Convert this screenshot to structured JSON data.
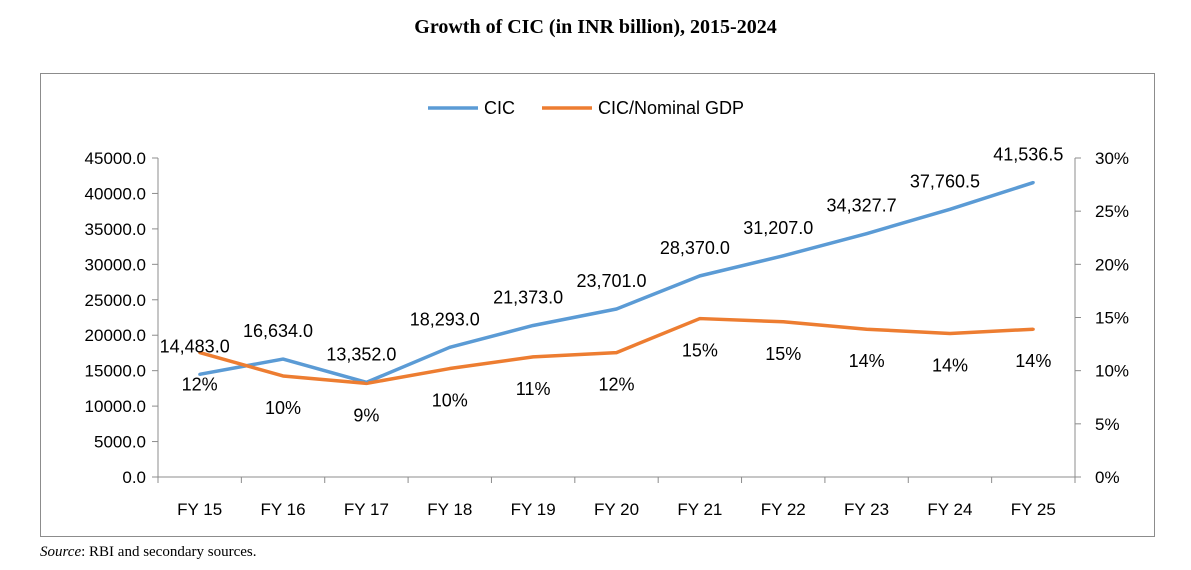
{
  "title": "Growth of CIC (in INR billion), 2015-2024",
  "source": {
    "label": "Source",
    "text": ": RBI and secondary sources."
  },
  "colors": {
    "cic": "#5b9bd5",
    "ratio": "#ed7d31",
    "axis": "#8c8c8c",
    "text": "#000000"
  },
  "chart_data": {
    "type": "line",
    "title": "Growth of CIC (in INR billion), 2015-2024",
    "categories": [
      "FY 15",
      "FY 16",
      "FY 17",
      "FY 18",
      "FY 19",
      "FY 20",
      "FY 21",
      "FY 22",
      "FY 23",
      "FY 24",
      "FY 25"
    ],
    "legend_position": "top",
    "grid": false,
    "y_left": {
      "range": [
        0,
        45000
      ],
      "ticks": [
        "0.0",
        "5000.0",
        "10000.0",
        "15000.0",
        "20000.0",
        "25000.0",
        "30000.0",
        "35000.0",
        "40000.0",
        "45000.0"
      ]
    },
    "y_right": {
      "range": [
        0,
        30
      ],
      "unit": "%",
      "ticks": [
        "0%",
        "5%",
        "10%",
        "15%",
        "20%",
        "25%",
        "30%"
      ]
    },
    "series": [
      {
        "name": "CIC",
        "axis": "left",
        "values": [
          14483.0,
          16634.0,
          13352.0,
          18293.0,
          21373.0,
          23701.0,
          28370.0,
          31207.0,
          34327.7,
          37760.5,
          41536.5
        ],
        "labels": [
          "14,483.0",
          "16,634.0",
          "13,352.0",
          "18,293.0",
          "21,373.0",
          "23,701.0",
          "28,370.0",
          "31,207.0",
          "34,327.7",
          "37,760.5",
          "41,536.5"
        ]
      },
      {
        "name": "CIC/Nominal GDP",
        "axis": "right",
        "values": [
          11.7,
          9.5,
          8.8,
          10.2,
          11.3,
          11.7,
          14.9,
          14.6,
          13.9,
          13.5,
          13.9
        ],
        "labels": [
          "12%",
          "10%",
          "9%",
          "10%",
          "11%",
          "12%",
          "15%",
          "15%",
          "14%",
          "14%",
          "14%"
        ]
      }
    ]
  }
}
